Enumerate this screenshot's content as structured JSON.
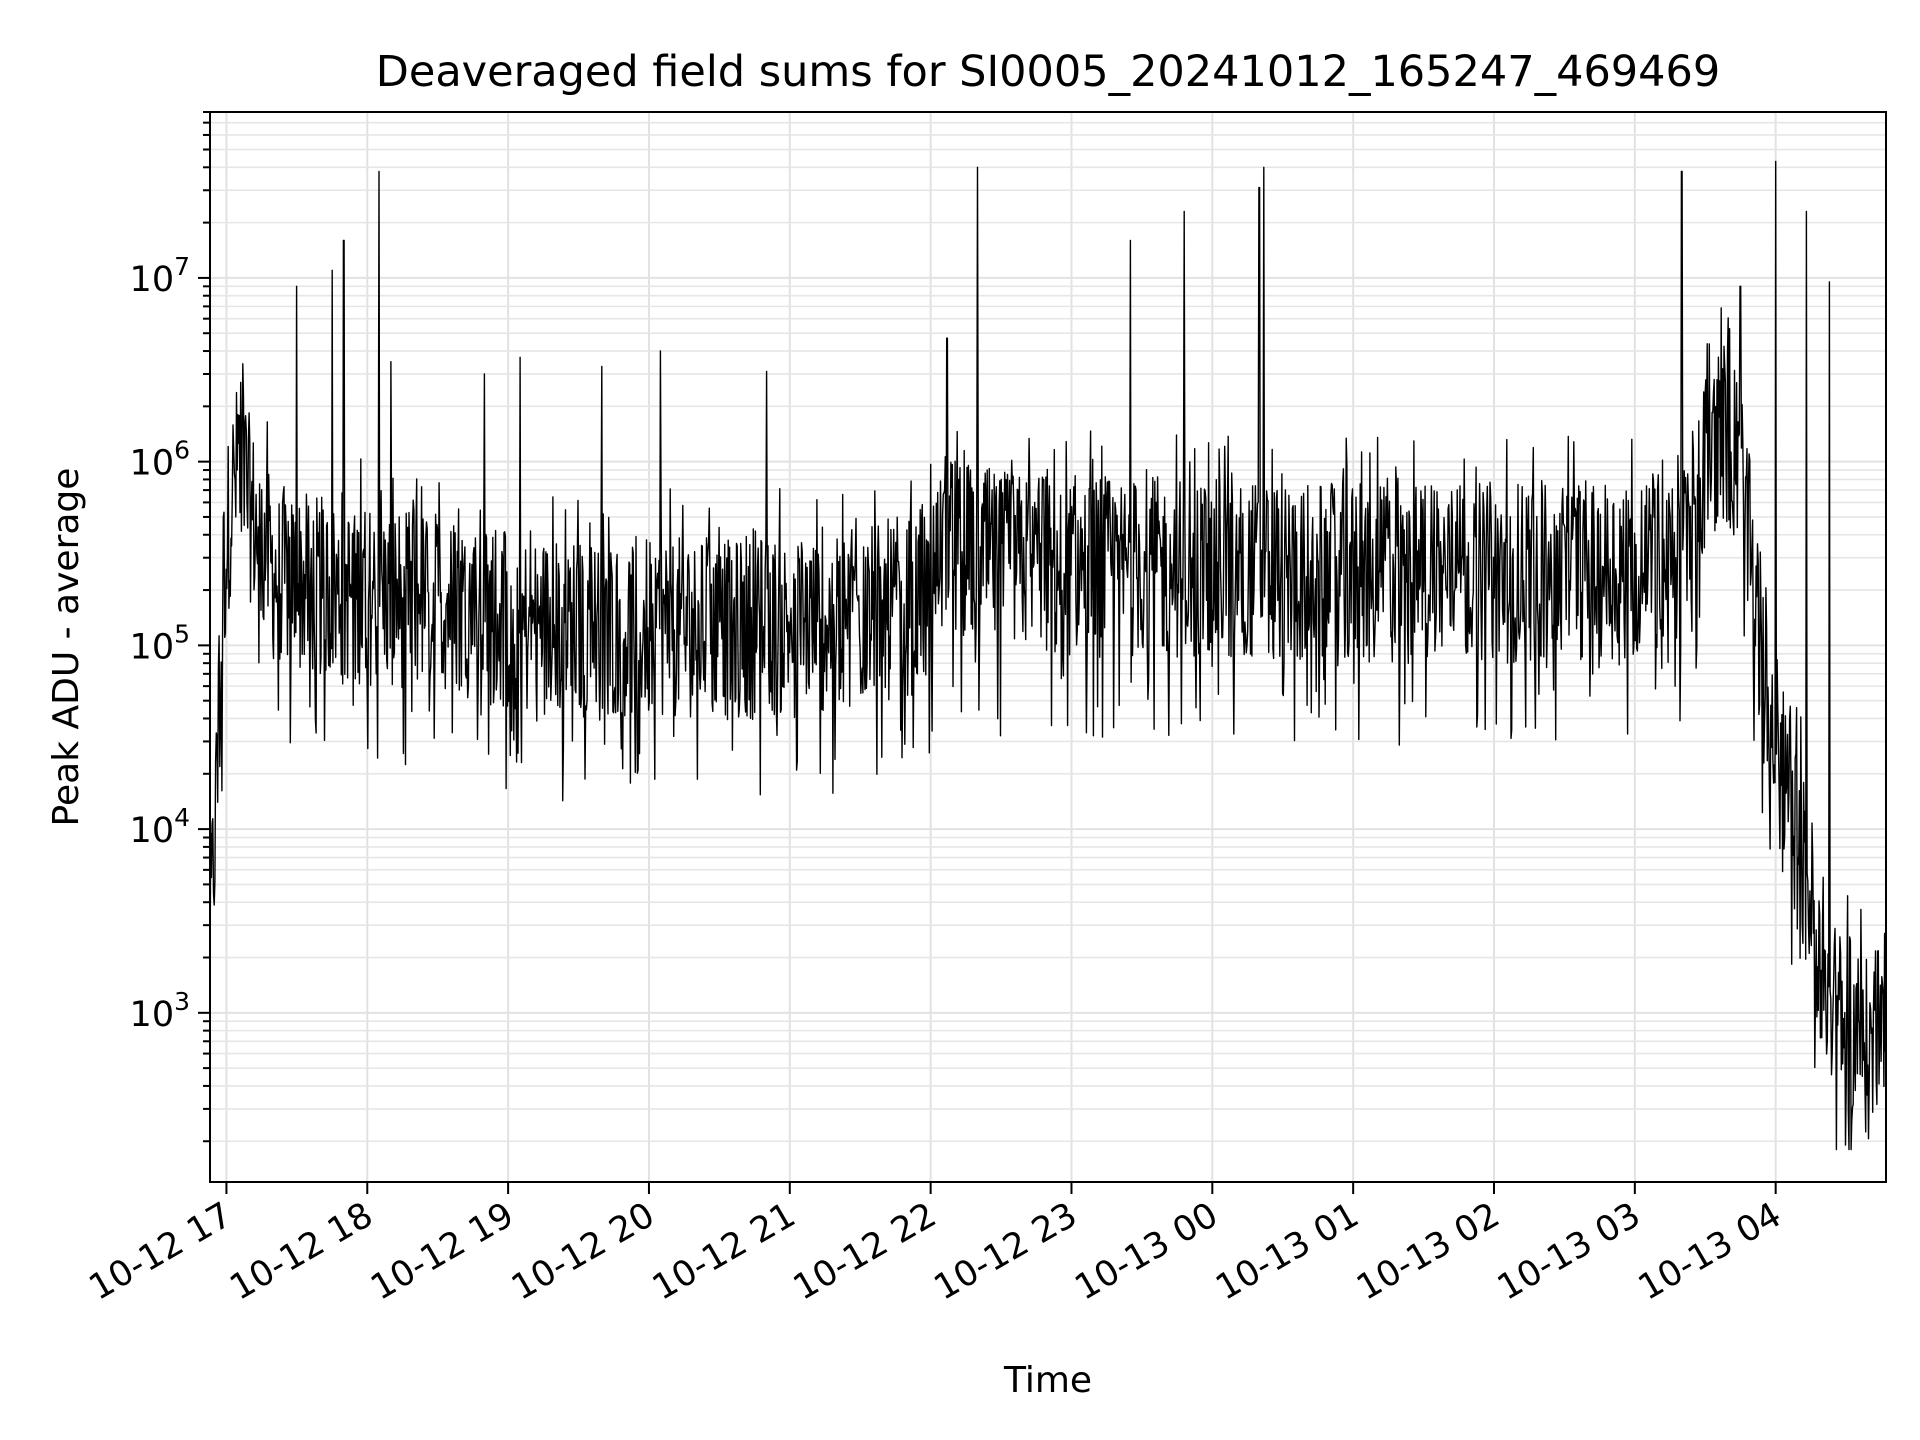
{
  "chart_data": {
    "type": "line",
    "title": "Deaveraged field sums for SI0005_20241012_165247_469469",
    "xlabel": "Time",
    "ylabel": "Peak ADU - average",
    "yscale": "log",
    "xlim": [
      "2024-10-12 16:53",
      "2024-10-13 04:47"
    ],
    "ylim": [
      120,
      80000000
    ],
    "grid": true,
    "legend": "none",
    "line_color": "#000000",
    "x_ticks": [
      {
        "label": "10-12 17",
        "t": "2024-10-12 17:00"
      },
      {
        "label": "10-12 18",
        "t": "2024-10-12 18:00"
      },
      {
        "label": "10-12 19",
        "t": "2024-10-12 19:00"
      },
      {
        "label": "10-12 20",
        "t": "2024-10-12 20:00"
      },
      {
        "label": "10-12 21",
        "t": "2024-10-12 21:00"
      },
      {
        "label": "10-12 22",
        "t": "2024-10-12 22:00"
      },
      {
        "label": "10-12 23",
        "t": "2024-10-12 23:00"
      },
      {
        "label": "10-13 00",
        "t": "2024-10-13 00:00"
      },
      {
        "label": "10-13 01",
        "t": "2024-10-13 01:00"
      },
      {
        "label": "10-13 02",
        "t": "2024-10-13 02:00"
      },
      {
        "label": "10-13 03",
        "t": "2024-10-13 03:00"
      },
      {
        "label": "10-13 04",
        "t": "2024-10-13 04:00"
      }
    ],
    "y_ticks": [
      {
        "base": "10",
        "exp": "3",
        "value": 1000
      },
      {
        "base": "10",
        "exp": "4",
        "value": 10000
      },
      {
        "base": "10",
        "exp": "5",
        "value": 100000
      },
      {
        "base": "10",
        "exp": "6",
        "value": 1000000
      },
      {
        "base": "10",
        "exp": "7",
        "value": 10000000
      }
    ],
    "series": [
      {
        "points": [
          [
            "2024-10-12 16:53",
            2500
          ],
          [
            "2024-10-12 16:55",
            9000
          ],
          [
            "2024-10-12 16:57",
            40000
          ],
          [
            "2024-10-12 16:59",
            250000
          ],
          [
            "2024-10-12 17:02",
            650000
          ],
          [
            "2024-10-12 17:05",
            900000
          ],
          [
            "2024-10-12 17:08",
            800000
          ],
          [
            "2024-10-12 17:10",
            550000
          ],
          [
            "2024-10-12 17:15",
            350000
          ],
          [
            "2024-10-12 17:20",
            250000
          ],
          [
            "2024-10-12 17:30",
            220000
          ],
          [
            "2024-10-12 17:45",
            200000
          ],
          [
            "2024-10-12 18:00",
            190000
          ],
          [
            "2024-10-12 18:20",
            180000
          ],
          [
            "2024-10-12 18:40",
            170000
          ],
          [
            "2024-10-12 19:00",
            130000
          ],
          [
            "2024-10-12 19:30",
            120000
          ],
          [
            "2024-10-12 20:00",
            130000
          ],
          [
            "2024-10-12 20:30",
            120000
          ],
          [
            "2024-10-12 21:00",
            130000
          ],
          [
            "2024-10-12 21:30",
            140000
          ],
          [
            "2024-10-12 22:00",
            180000
          ],
          [
            "2024-10-12 22:05",
            350000
          ],
          [
            "2024-10-12 22:30",
            280000
          ],
          [
            "2024-10-12 23:00",
            270000
          ],
          [
            "2024-10-13 00:00",
            260000
          ],
          [
            "2024-10-13 01:00",
            240000
          ],
          [
            "2024-10-13 02:00",
            250000
          ],
          [
            "2024-10-13 03:00",
            270000
          ],
          [
            "2024-10-13 03:20",
            300000
          ],
          [
            "2024-10-13 03:30",
            1000000
          ],
          [
            "2024-10-13 03:38",
            1500000
          ],
          [
            "2024-10-13 03:45",
            900000
          ],
          [
            "2024-10-13 03:52",
            150000
          ],
          [
            "2024-10-13 04:00",
            30000
          ],
          [
            "2024-10-13 04:10",
            8000
          ],
          [
            "2024-10-13 04:20",
            2000
          ],
          [
            "2024-10-13 04:30",
            900
          ],
          [
            "2024-10-13 04:40",
            600
          ],
          [
            "2024-10-13 04:47",
            900
          ]
        ],
        "spikes": [
          [
            "2024-10-12 17:30",
            9000000
          ],
          [
            "2024-10-12 17:45",
            11000000
          ],
          [
            "2024-10-12 17:50",
            16000000
          ],
          [
            "2024-10-12 18:05",
            38000000
          ],
          [
            "2024-10-12 18:10",
            3500000
          ],
          [
            "2024-10-12 18:50",
            3000000
          ],
          [
            "2024-10-12 19:05",
            3700000
          ],
          [
            "2024-10-12 19:40",
            3300000
          ],
          [
            "2024-10-12 20:05",
            4000000
          ],
          [
            "2024-10-12 20:50",
            3100000
          ],
          [
            "2024-10-12 22:07",
            4700000
          ],
          [
            "2024-10-12 22:20",
            40000000
          ],
          [
            "2024-10-12 23:25",
            16000000
          ],
          [
            "2024-10-12 23:48",
            23000000
          ],
          [
            "2024-10-13 00:20",
            31000000
          ],
          [
            "2024-10-13 00:22",
            40000000
          ],
          [
            "2024-10-13 03:20",
            38000000
          ],
          [
            "2024-10-13 03:45",
            9000000
          ],
          [
            "2024-10-13 04:00",
            43000000
          ],
          [
            "2024-10-13 04:13",
            23000000
          ],
          [
            "2024-10-13 04:23",
            9500000
          ]
        ]
      }
    ]
  }
}
